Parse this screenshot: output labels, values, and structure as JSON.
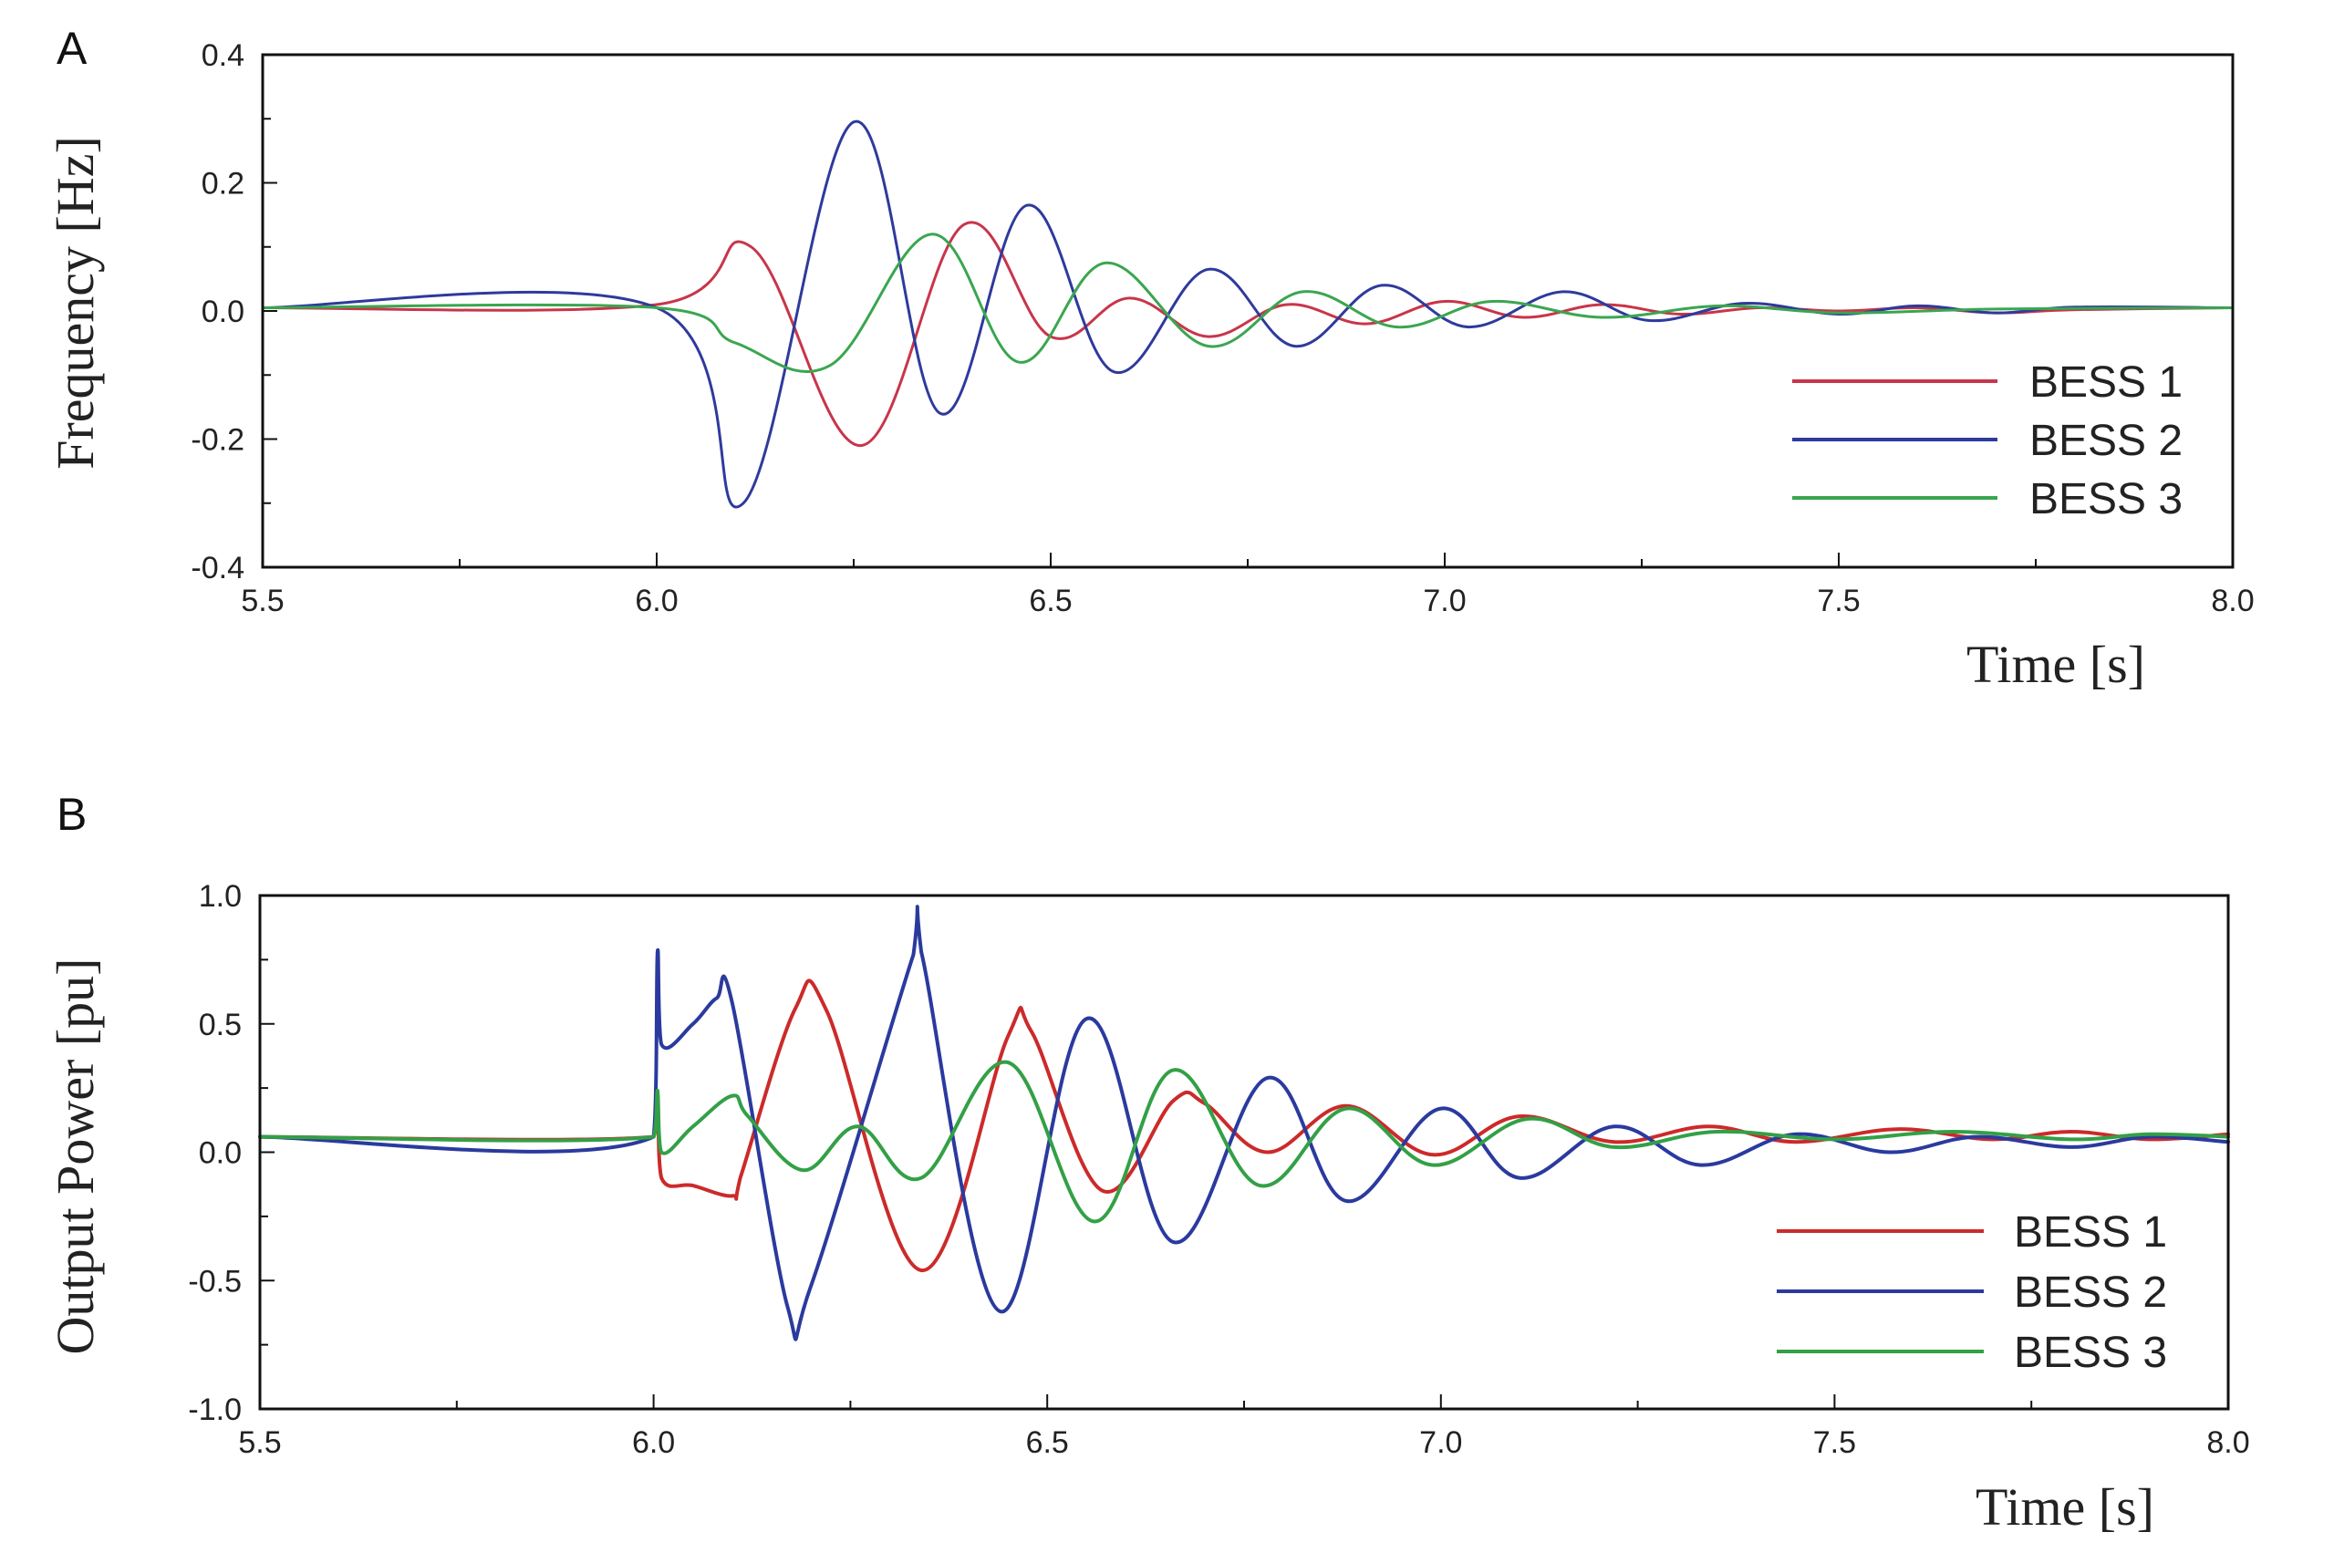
{
  "chart_data": [
    {
      "panel": "A",
      "type": "line",
      "ylabel": "Frequency [Hz]",
      "xlabel": "Time [s]",
      "xlim": [
        5.5,
        8.0
      ],
      "ylim": [
        -0.4,
        0.4
      ],
      "xticks": [
        5.5,
        6.0,
        6.5,
        7.0,
        7.5,
        8.0
      ],
      "xtick_labels": [
        "5.5",
        "6.0",
        "6.5",
        "7.0",
        "7.5",
        "8.0"
      ],
      "yticks": [
        -0.4,
        -0.2,
        0.0,
        0.2,
        0.4
      ],
      "ytick_labels": [
        "-0.4",
        "-0.2",
        "0.0",
        "0.2",
        "0.4"
      ],
      "grid": false,
      "legend_position": "bottom-right",
      "series": [
        {
          "name": "BESS 1",
          "color": "#c8354a",
          "x": [
            5.5,
            6.0,
            6.12,
            6.26,
            6.39,
            6.5,
            6.6,
            6.7,
            6.8,
            6.9,
            7.0,
            7.1,
            7.2,
            7.3,
            7.4,
            7.5,
            7.6,
            7.7,
            7.8,
            8.0
          ],
          "y": [
            0.005,
            0.01,
            0.1,
            -0.21,
            0.135,
            -0.04,
            0.02,
            -0.04,
            0.01,
            -0.02,
            0.015,
            -0.01,
            0.01,
            -0.005,
            0.005,
            0.0,
            0.005,
            -0.003,
            0.002,
            0.005
          ]
        },
        {
          "name": "BESS 2",
          "color": "#2e3a9c",
          "x": [
            5.5,
            6.0,
            6.11,
            6.25,
            6.36,
            6.47,
            6.58,
            6.7,
            6.81,
            6.92,
            7.03,
            7.15,
            7.26,
            7.38,
            7.5,
            7.6,
            7.7,
            7.8,
            8.0
          ],
          "y": [
            0.005,
            0.005,
            -0.3,
            0.295,
            -0.16,
            0.165,
            -0.095,
            0.065,
            -0.055,
            0.04,
            -0.025,
            0.03,
            -0.015,
            0.012,
            -0.005,
            0.008,
            -0.003,
            0.006,
            0.005
          ]
        },
        {
          "name": "BESS 3",
          "color": "#3aa650",
          "x": [
            5.5,
            6.0,
            6.1,
            6.22,
            6.35,
            6.46,
            6.57,
            6.7,
            6.82,
            6.94,
            7.06,
            7.2,
            7.35,
            7.5,
            7.7,
            8.0
          ],
          "y": [
            0.005,
            0.005,
            -0.05,
            -0.085,
            0.12,
            -0.08,
            0.075,
            -0.055,
            0.03,
            -0.025,
            0.015,
            -0.01,
            0.008,
            -0.003,
            0.003,
            0.005
          ]
        }
      ]
    },
    {
      "panel": "B",
      "type": "line",
      "ylabel": "Output Power [pu]",
      "xlabel": "Time [s]",
      "xlim": [
        5.5,
        8.0
      ],
      "ylim": [
        -1.0,
        1.0
      ],
      "xticks": [
        5.5,
        6.0,
        6.5,
        7.0,
        7.5,
        8.0
      ],
      "xtick_labels": [
        "5.5",
        "6.0",
        "6.5",
        "7.0",
        "7.5",
        "8.0"
      ],
      "yticks": [
        -1.0,
        -0.5,
        0.0,
        0.5,
        1.0
      ],
      "ytick_labels": [
        "-1.0",
        "-0.5",
        "0.0",
        "0.5",
        "1.0"
      ],
      "grid": false,
      "legend_position": "bottom-right",
      "series": [
        {
          "name": "BESS 1",
          "color": "#cc2a2a",
          "x": [
            5.5,
            6.0,
            6.005,
            6.01,
            6.05,
            6.1,
            6.11,
            6.18,
            6.22,
            6.34,
            6.45,
            6.48,
            6.57,
            6.66,
            6.7,
            6.78,
            6.88,
            6.99,
            7.1,
            7.22,
            7.34,
            7.45,
            7.58,
            7.7,
            7.8,
            7.9,
            8.0
          ],
          "y": [
            0.06,
            0.06,
            0.2,
            -0.1,
            -0.13,
            -0.17,
            -0.1,
            0.56,
            0.55,
            -0.46,
            0.45,
            0.47,
            -0.15,
            0.2,
            0.19,
            0.0,
            0.18,
            -0.01,
            0.14,
            0.04,
            0.1,
            0.04,
            0.09,
            0.05,
            0.08,
            0.05,
            0.07
          ]
        },
        {
          "name": "BESS 2",
          "color": "#2a3a9e",
          "x": [
            5.5,
            6.0,
            6.005,
            6.01,
            6.05,
            6.08,
            6.1,
            6.17,
            6.2,
            6.33,
            6.34,
            6.44,
            6.55,
            6.66,
            6.78,
            6.88,
            7.0,
            7.1,
            7.22,
            7.33,
            7.45,
            7.57,
            7.68,
            7.8,
            7.9,
            8.0
          ],
          "y": [
            0.06,
            0.06,
            0.78,
            0.42,
            0.5,
            0.6,
            0.58,
            -0.6,
            -0.52,
            0.77,
            0.78,
            -0.62,
            0.52,
            -0.35,
            0.29,
            -0.19,
            0.17,
            -0.1,
            0.1,
            -0.05,
            0.07,
            0.0,
            0.06,
            0.02,
            0.06,
            0.04
          ]
        },
        {
          "name": "BESS 3",
          "color": "#33a046",
          "x": [
            5.5,
            6.0,
            6.005,
            6.01,
            6.05,
            6.1,
            6.12,
            6.19,
            6.26,
            6.34,
            6.45,
            6.56,
            6.66,
            6.77,
            6.88,
            6.99,
            7.11,
            7.22,
            7.35,
            7.5,
            7.65,
            7.8,
            7.9,
            8.0
          ],
          "y": [
            0.06,
            0.06,
            0.24,
            0.0,
            0.1,
            0.22,
            0.14,
            -0.07,
            0.1,
            -0.1,
            0.35,
            -0.27,
            0.32,
            -0.13,
            0.17,
            -0.05,
            0.13,
            0.02,
            0.08,
            0.05,
            0.08,
            0.05,
            0.07,
            0.06
          ]
        }
      ]
    }
  ]
}
